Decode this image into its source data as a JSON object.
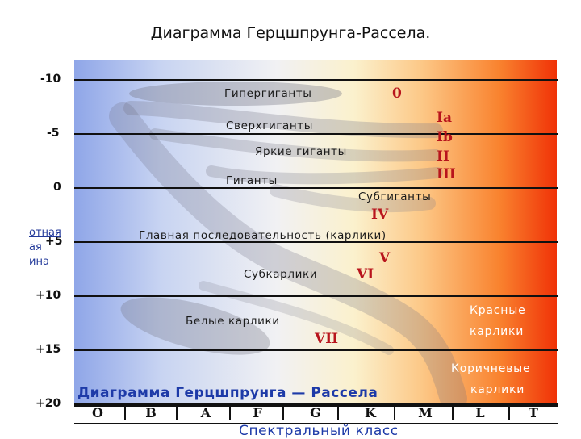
{
  "title": "Диаграмма Герцшпрунга-Рассела.",
  "colors": {
    "hot_blue": "#8fa6e8",
    "cool_red": "#f03207",
    "class_label": "#b8141c",
    "caption_blue": "#1d3aa8"
  },
  "axis": {
    "y_label_lines": [
      "отная",
      "ая",
      "ина"
    ],
    "x_label": "Спектральный класс",
    "magnitude_ticks": [
      "-10",
      "-5",
      "0",
      "+5",
      "+10",
      "+15",
      "+20"
    ],
    "spectral_classes": [
      "O",
      "B",
      "A",
      "F",
      "G",
      "K",
      "M",
      "L",
      "T"
    ]
  },
  "regions": {
    "hypergiants": "Гипергиганты",
    "supergiants": "Сверхгиганты",
    "bright_giants": "Яркие гиганты",
    "giants": "Гиганты",
    "subgiants": "Субгиганты",
    "main_sequence": "Главная последовательность (карлики)",
    "subdwarfs": "Субкарлики",
    "white_dwarfs": "Белые карлики",
    "red_dwarfs_1": "Красные",
    "red_dwarfs_2": "карлики",
    "brown_dwarfs_1": "Коричневые",
    "brown_dwarfs_2": "карлики"
  },
  "luminosity_classes": {
    "c0": "0",
    "cIa": "Ia",
    "cIb": "Ib",
    "cII": "II",
    "cIII": "III",
    "cIV": "IV",
    "cV": "V",
    "cVI": "VI",
    "cVII": "VII"
  },
  "diagram_title": "Диаграмма Герцшпрунга — Рассела"
}
